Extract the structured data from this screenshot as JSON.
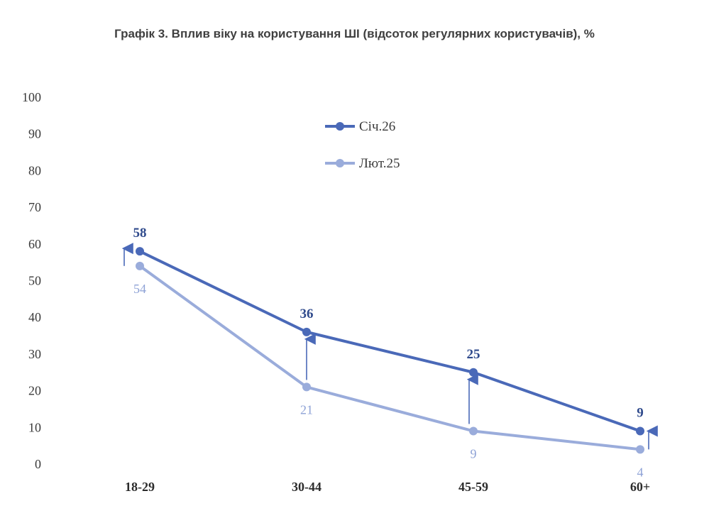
{
  "chart_data": {
    "type": "line",
    "title": "Графік 3. Вплив віку на користування ШІ (відсоток регулярних користувачів), %",
    "categories": [
      "18-29",
      "30-44",
      "45-59",
      "60+"
    ],
    "series": [
      {
        "name": "Січ.26",
        "values": [
          58,
          36,
          25,
          9
        ],
        "color": "#4a69b8"
      },
      {
        "name": "Лют.25",
        "values": [
          54,
          21,
          9,
          4
        ],
        "color": "#9aacdb"
      }
    ],
    "yticks": [
      "0",
      "10",
      "20",
      "30",
      "40",
      "50",
      "60",
      "70",
      "80",
      "90",
      "100"
    ],
    "ylim": [
      0,
      100
    ],
    "grid": false,
    "legend_position": "top-center",
    "annotations": "arrows from Лют.25 to Січ.26 values"
  }
}
